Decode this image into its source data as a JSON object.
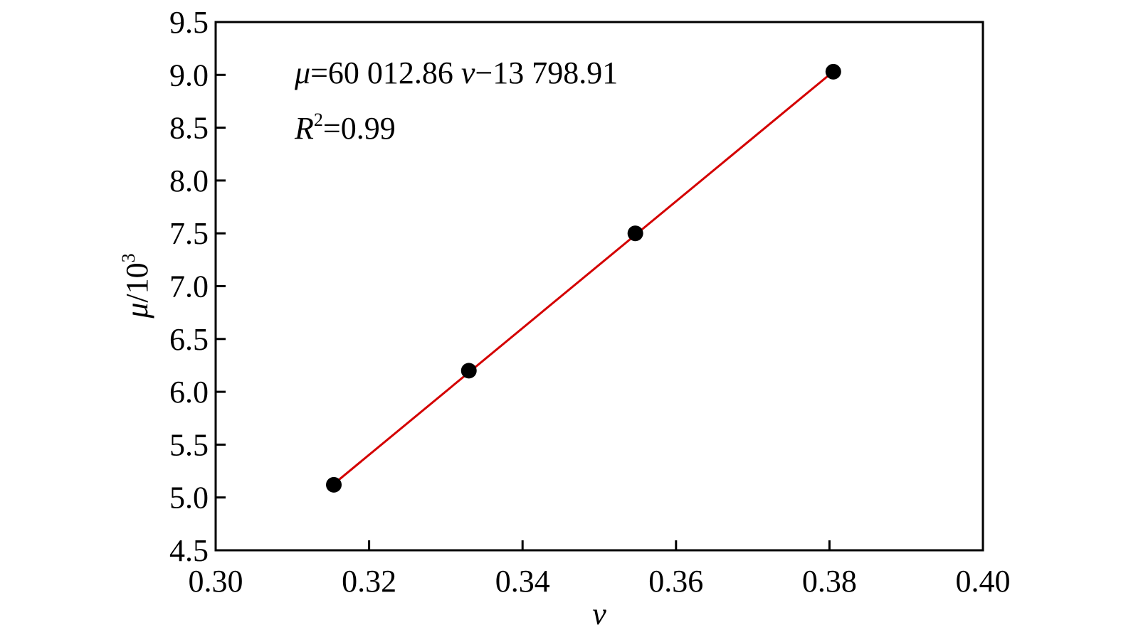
{
  "chart_data": {
    "type": "scatter",
    "title": "",
    "xlabel": "v",
    "ylabel": {
      "symbol": "μ",
      "rest": "/10",
      "exponent": "3"
    },
    "xlim": [
      0.3,
      0.4
    ],
    "ylim": [
      4.5,
      9.5
    ],
    "x_ticks": [
      0.3,
      0.32,
      0.34,
      0.36,
      0.38,
      0.4
    ],
    "x_tick_labels": [
      "0.30",
      "0.32",
      "0.34",
      "0.36",
      "0.38",
      "0.40"
    ],
    "y_ticks": [
      4.5,
      5.0,
      5.5,
      6.0,
      6.5,
      7.0,
      7.5,
      8.0,
      8.5,
      9.0,
      9.5
    ],
    "y_tick_labels": [
      "4.5",
      "5.0",
      "5.5",
      "6.0",
      "6.5",
      "7.0",
      "7.5",
      "8.0",
      "8.5",
      "9.0",
      "9.5"
    ],
    "grid": false,
    "points": [
      {
        "x": 0.3154,
        "y": 5.12
      },
      {
        "x": 0.333,
        "y": 6.2
      },
      {
        "x": 0.3547,
        "y": 7.5
      },
      {
        "x": 0.3805,
        "y": 9.03
      }
    ],
    "fit_line": {
      "x": [
        0.3154,
        0.3805
      ],
      "y": [
        5.128,
        9.032
      ]
    },
    "annotations": {
      "equation": {
        "lhs": "μ",
        "middle": "=60 012.86 ",
        "var": "v",
        "rhs": "−13 798.91"
      },
      "r_squared": {
        "symbol": "R",
        "exponent": "2",
        "rest": "=0.99"
      }
    },
    "colors": {
      "points": "#000000",
      "fit_line": "#d40000",
      "axes": "#000000"
    }
  }
}
